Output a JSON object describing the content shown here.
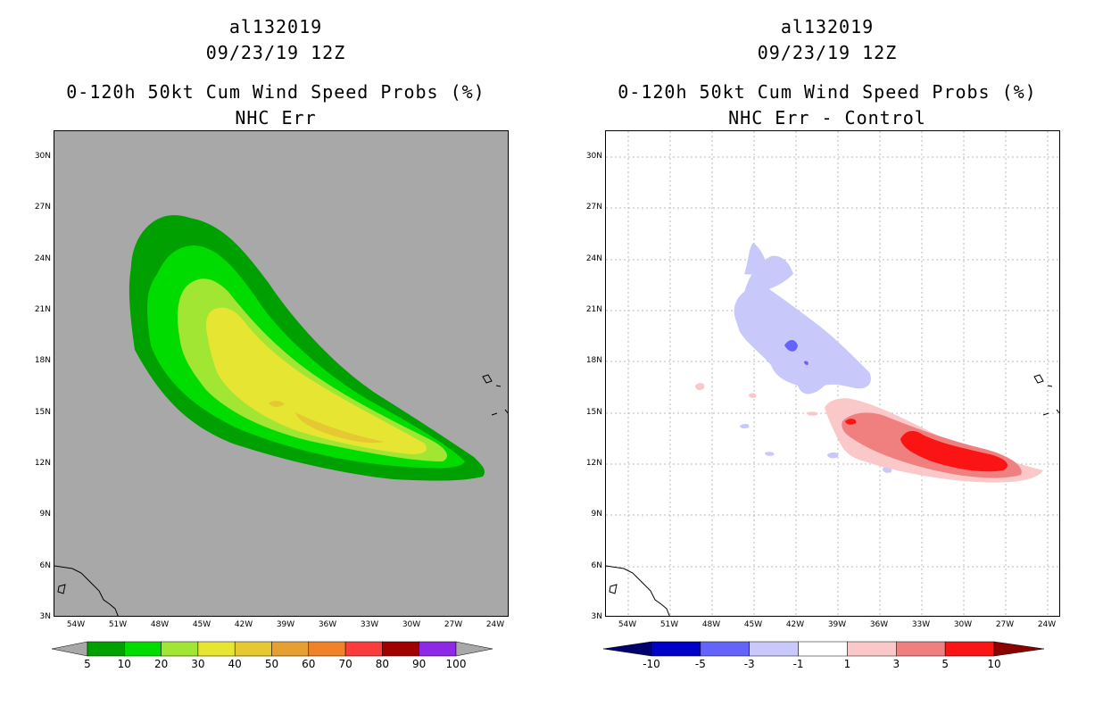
{
  "left": {
    "title1": "al132019",
    "title2": "09/23/19 12Z",
    "title3": "0-120h 50kt Cum Wind Speed Probs (%)",
    "title4": "NHC Err",
    "colorbar": {
      "colors": [
        "#00a000",
        "#00dc00",
        "#a0e632",
        "#e6e632",
        "#e6c832",
        "#e6a032",
        "#f08228",
        "#fa3c3c",
        "#a00000",
        "#8c28e6"
      ],
      "labels": [
        "5",
        "10",
        "20",
        "30",
        "40",
        "50",
        "60",
        "70",
        "80",
        "90",
        "100"
      ]
    }
  },
  "right": {
    "title1": "al132019",
    "title2": "09/23/19 12Z",
    "title3": "0-120h 50kt Cum Wind Speed Probs (%)",
    "title4": "NHC Err - Control",
    "colorbar": {
      "colors": [
        "#0000c8",
        "#6464fa",
        "#c8c8fa",
        "#ffffff",
        "#fac8c8",
        "#f08080",
        "#fa1414"
      ],
      "labels": [
        "-10",
        "-5",
        "-3",
        "-1",
        "1",
        "3",
        "5",
        "10"
      ]
    }
  },
  "axes": {
    "lat_labels": [
      "30N",
      "27N",
      "24N",
      "21N",
      "18N",
      "15N",
      "12N",
      "9N",
      "6N",
      "3N"
    ],
    "lon_labels": [
      "54W",
      "51W",
      "48W",
      "45W",
      "42W",
      "39W",
      "36W",
      "33W",
      "30W",
      "27W",
      "24W"
    ]
  }
}
